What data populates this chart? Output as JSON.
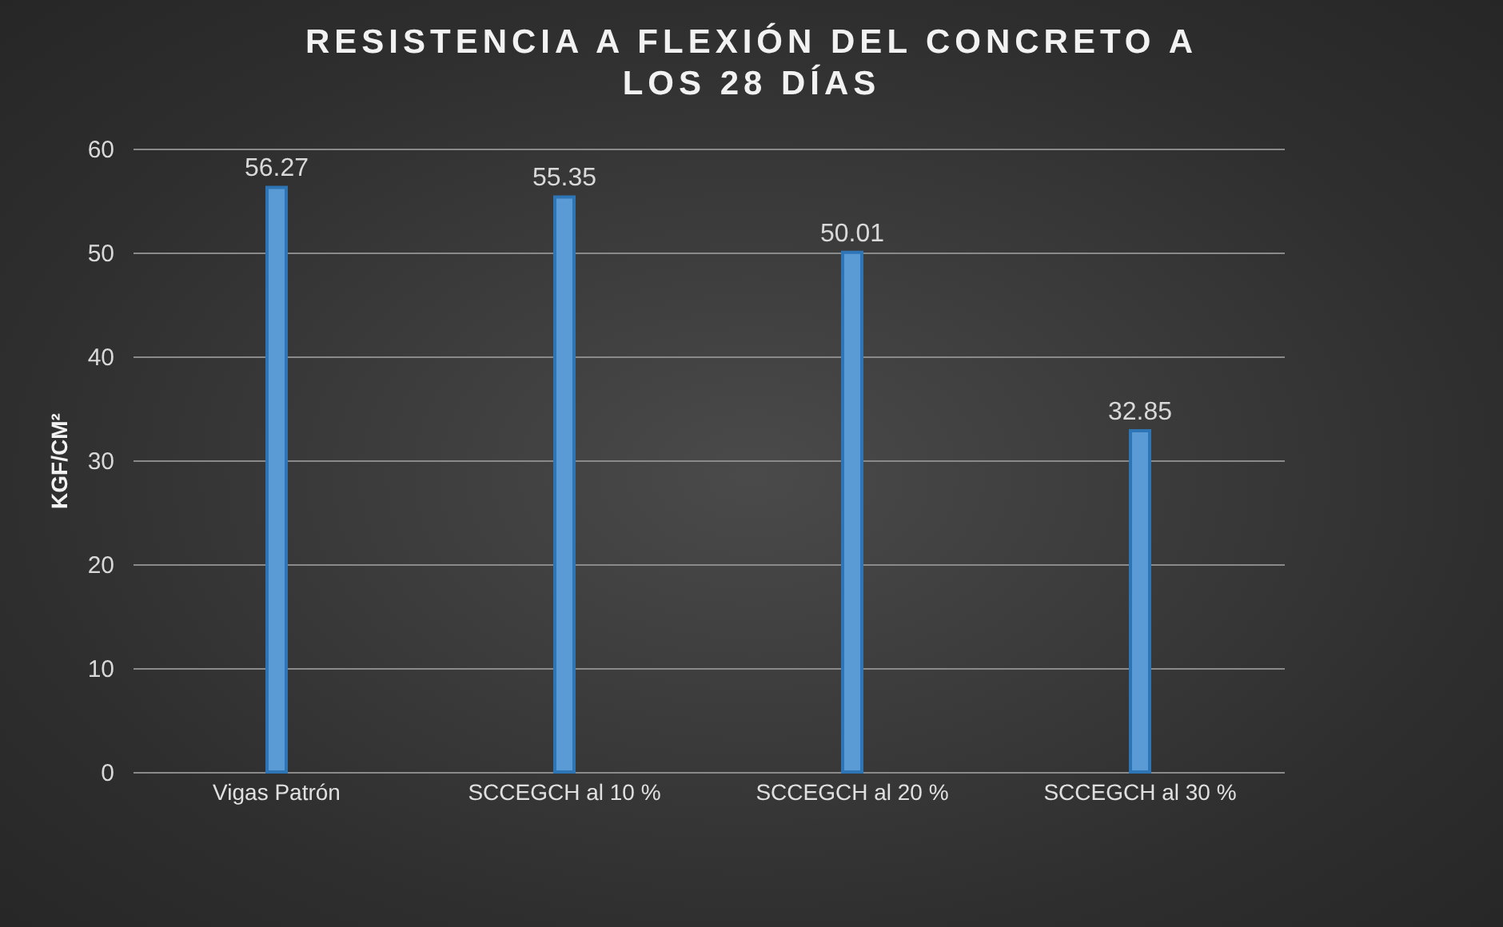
{
  "chart_data": {
    "type": "bar",
    "title": "RESISTENCIA A FLEXIÓN DEL CONCRETO A LOS 28 DÍAS",
    "ylabel": "KGF/CM²",
    "categories": [
      "Vigas Patrón",
      "SCCEGCH al 10 %",
      "SCCEGCH al 20 %",
      "SCCEGCH al 30 %"
    ],
    "values": [
      56.27,
      55.35,
      50.01,
      32.85
    ],
    "color": "#5b9bd5",
    "ylim": [
      0,
      60
    ],
    "yticks": [
      0,
      10,
      20,
      30,
      40,
      50,
      60
    ],
    "grid": "y",
    "data_labels": true
  }
}
